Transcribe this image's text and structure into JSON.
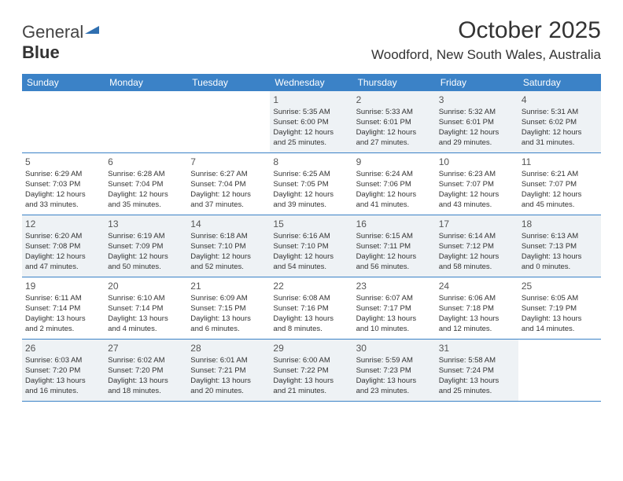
{
  "logo": {
    "part1": "General",
    "part2": "Blue"
  },
  "title": "October 2025",
  "location": "Woodford, New South Wales, Australia",
  "colors": {
    "header_bg": "#3b82c7",
    "shaded_bg": "#eef2f5",
    "logo_icon": "#2f6fb0"
  },
  "weekdays": [
    "Sunday",
    "Monday",
    "Tuesday",
    "Wednesday",
    "Thursday",
    "Friday",
    "Saturday"
  ],
  "weeks": [
    [
      {
        "day": "",
        "lines": []
      },
      {
        "day": "",
        "lines": []
      },
      {
        "day": "",
        "lines": []
      },
      {
        "day": "1",
        "lines": [
          "Sunrise: 5:35 AM",
          "Sunset: 6:00 PM",
          "Daylight: 12 hours",
          "and 25 minutes."
        ]
      },
      {
        "day": "2",
        "lines": [
          "Sunrise: 5:33 AM",
          "Sunset: 6:01 PM",
          "Daylight: 12 hours",
          "and 27 minutes."
        ]
      },
      {
        "day": "3",
        "lines": [
          "Sunrise: 5:32 AM",
          "Sunset: 6:01 PM",
          "Daylight: 12 hours",
          "and 29 minutes."
        ]
      },
      {
        "day": "4",
        "lines": [
          "Sunrise: 5:31 AM",
          "Sunset: 6:02 PM",
          "Daylight: 12 hours",
          "and 31 minutes."
        ]
      }
    ],
    [
      {
        "day": "5",
        "lines": [
          "Sunrise: 6:29 AM",
          "Sunset: 7:03 PM",
          "Daylight: 12 hours",
          "and 33 minutes."
        ]
      },
      {
        "day": "6",
        "lines": [
          "Sunrise: 6:28 AM",
          "Sunset: 7:04 PM",
          "Daylight: 12 hours",
          "and 35 minutes."
        ]
      },
      {
        "day": "7",
        "lines": [
          "Sunrise: 6:27 AM",
          "Sunset: 7:04 PM",
          "Daylight: 12 hours",
          "and 37 minutes."
        ]
      },
      {
        "day": "8",
        "lines": [
          "Sunrise: 6:25 AM",
          "Sunset: 7:05 PM",
          "Daylight: 12 hours",
          "and 39 minutes."
        ]
      },
      {
        "day": "9",
        "lines": [
          "Sunrise: 6:24 AM",
          "Sunset: 7:06 PM",
          "Daylight: 12 hours",
          "and 41 minutes."
        ]
      },
      {
        "day": "10",
        "lines": [
          "Sunrise: 6:23 AM",
          "Sunset: 7:07 PM",
          "Daylight: 12 hours",
          "and 43 minutes."
        ]
      },
      {
        "day": "11",
        "lines": [
          "Sunrise: 6:21 AM",
          "Sunset: 7:07 PM",
          "Daylight: 12 hours",
          "and 45 minutes."
        ]
      }
    ],
    [
      {
        "day": "12",
        "lines": [
          "Sunrise: 6:20 AM",
          "Sunset: 7:08 PM",
          "Daylight: 12 hours",
          "and 47 minutes."
        ]
      },
      {
        "day": "13",
        "lines": [
          "Sunrise: 6:19 AM",
          "Sunset: 7:09 PM",
          "Daylight: 12 hours",
          "and 50 minutes."
        ]
      },
      {
        "day": "14",
        "lines": [
          "Sunrise: 6:18 AM",
          "Sunset: 7:10 PM",
          "Daylight: 12 hours",
          "and 52 minutes."
        ]
      },
      {
        "day": "15",
        "lines": [
          "Sunrise: 6:16 AM",
          "Sunset: 7:10 PM",
          "Daylight: 12 hours",
          "and 54 minutes."
        ]
      },
      {
        "day": "16",
        "lines": [
          "Sunrise: 6:15 AM",
          "Sunset: 7:11 PM",
          "Daylight: 12 hours",
          "and 56 minutes."
        ]
      },
      {
        "day": "17",
        "lines": [
          "Sunrise: 6:14 AM",
          "Sunset: 7:12 PM",
          "Daylight: 12 hours",
          "and 58 minutes."
        ]
      },
      {
        "day": "18",
        "lines": [
          "Sunrise: 6:13 AM",
          "Sunset: 7:13 PM",
          "Daylight: 13 hours",
          "and 0 minutes."
        ]
      }
    ],
    [
      {
        "day": "19",
        "lines": [
          "Sunrise: 6:11 AM",
          "Sunset: 7:14 PM",
          "Daylight: 13 hours",
          "and 2 minutes."
        ]
      },
      {
        "day": "20",
        "lines": [
          "Sunrise: 6:10 AM",
          "Sunset: 7:14 PM",
          "Daylight: 13 hours",
          "and 4 minutes."
        ]
      },
      {
        "day": "21",
        "lines": [
          "Sunrise: 6:09 AM",
          "Sunset: 7:15 PM",
          "Daylight: 13 hours",
          "and 6 minutes."
        ]
      },
      {
        "day": "22",
        "lines": [
          "Sunrise: 6:08 AM",
          "Sunset: 7:16 PM",
          "Daylight: 13 hours",
          "and 8 minutes."
        ]
      },
      {
        "day": "23",
        "lines": [
          "Sunrise: 6:07 AM",
          "Sunset: 7:17 PM",
          "Daylight: 13 hours",
          "and 10 minutes."
        ]
      },
      {
        "day": "24",
        "lines": [
          "Sunrise: 6:06 AM",
          "Sunset: 7:18 PM",
          "Daylight: 13 hours",
          "and 12 minutes."
        ]
      },
      {
        "day": "25",
        "lines": [
          "Sunrise: 6:05 AM",
          "Sunset: 7:19 PM",
          "Daylight: 13 hours",
          "and 14 minutes."
        ]
      }
    ],
    [
      {
        "day": "26",
        "lines": [
          "Sunrise: 6:03 AM",
          "Sunset: 7:20 PM",
          "Daylight: 13 hours",
          "and 16 minutes."
        ]
      },
      {
        "day": "27",
        "lines": [
          "Sunrise: 6:02 AM",
          "Sunset: 7:20 PM",
          "Daylight: 13 hours",
          "and 18 minutes."
        ]
      },
      {
        "day": "28",
        "lines": [
          "Sunrise: 6:01 AM",
          "Sunset: 7:21 PM",
          "Daylight: 13 hours",
          "and 20 minutes."
        ]
      },
      {
        "day": "29",
        "lines": [
          "Sunrise: 6:00 AM",
          "Sunset: 7:22 PM",
          "Daylight: 13 hours",
          "and 21 minutes."
        ]
      },
      {
        "day": "30",
        "lines": [
          "Sunrise: 5:59 AM",
          "Sunset: 7:23 PM",
          "Daylight: 13 hours",
          "and 23 minutes."
        ]
      },
      {
        "day": "31",
        "lines": [
          "Sunrise: 5:58 AM",
          "Sunset: 7:24 PM",
          "Daylight: 13 hours",
          "and 25 minutes."
        ]
      },
      {
        "day": "",
        "lines": []
      }
    ]
  ]
}
